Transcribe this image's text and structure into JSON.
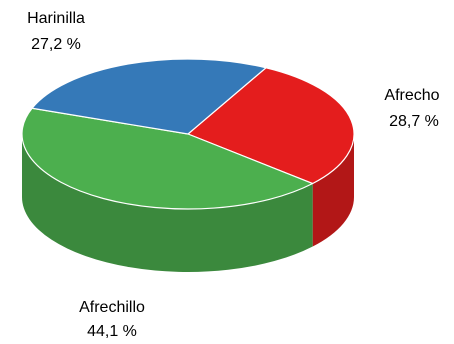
{
  "chart_data": {
    "type": "pie",
    "title": "",
    "style": "3d",
    "legend": "none",
    "slices": [
      {
        "label": "Harinilla",
        "value": 27.2,
        "value_label": "27,2 %",
        "color": "#3579b8"
      },
      {
        "label": "Afrecho",
        "value": 28.7,
        "value_label": "28,7 %",
        "color": "#e41d1d"
      },
      {
        "label": "Afrechillo",
        "value": 44.1,
        "value_label": "44,1 %",
        "color": "#4caf4e"
      }
    ]
  }
}
